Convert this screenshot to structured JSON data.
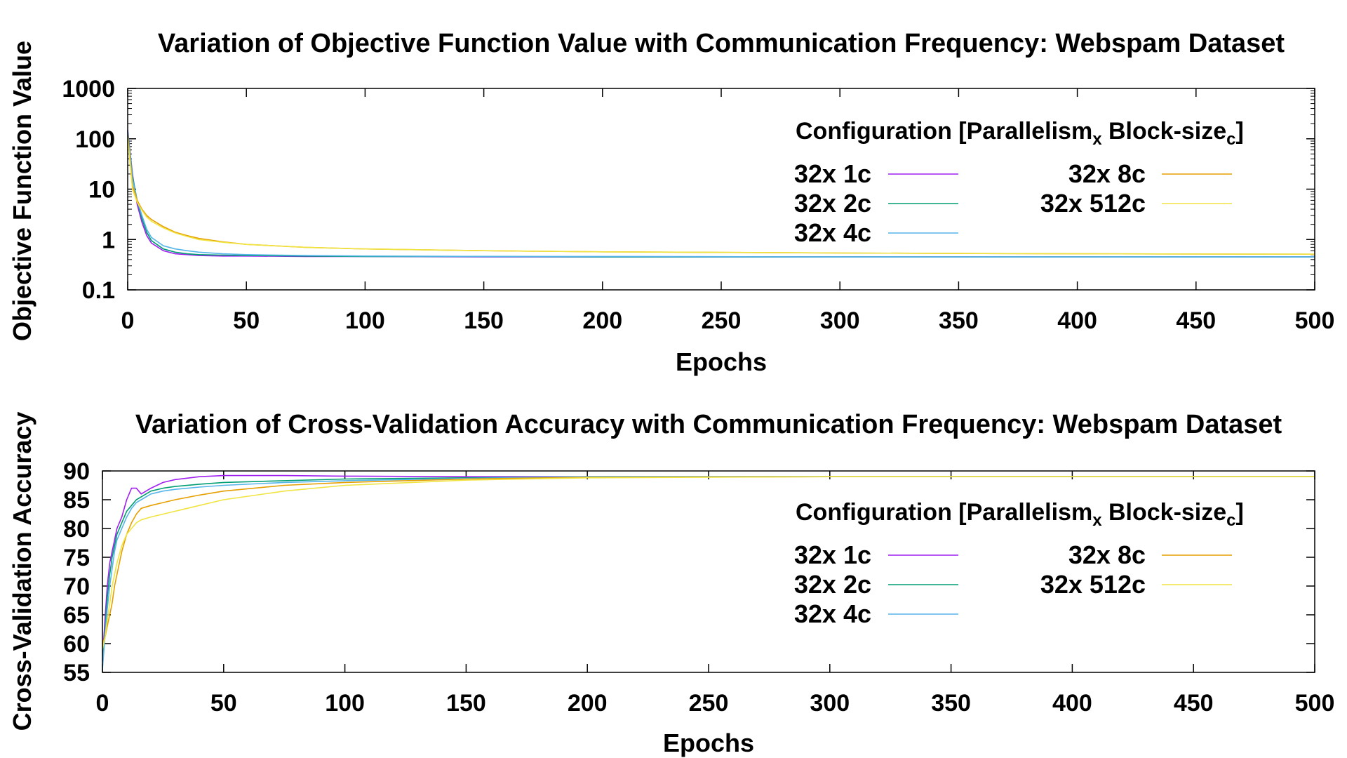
{
  "chart_data": [
    {
      "type": "line",
      "title": "Variation of Objective Function Value with Communication Frequency: Webspam Dataset",
      "xlabel": "Epochs",
      "ylabel": "Objective Function Value",
      "xlim": [
        0,
        500
      ],
      "ylim": [
        0.1,
        1000
      ],
      "yscale": "log",
      "x_ticks": [
        0,
        50,
        100,
        150,
        200,
        250,
        300,
        350,
        400,
        450,
        500
      ],
      "y_ticks": [
        0.1,
        1,
        10,
        100,
        1000
      ],
      "y_tick_labels": [
        "0.1",
        "1",
        "10",
        "100",
        "1000"
      ],
      "grid": false,
      "legend_position": "top-right",
      "legend_title": {
        "prefix": "Configuration [Parallelism",
        "sub1": "x",
        "middle": " Block-size",
        "sub2": "c",
        "suffix": "]"
      },
      "series": [
        {
          "name": "32x 1c",
          "color": "#a020f0",
          "x": [
            0,
            2,
            4,
            6,
            8,
            10,
            15,
            20,
            25,
            30,
            40,
            50,
            75,
            100,
            150,
            200,
            300,
            400,
            500
          ],
          "values": [
            150,
            20,
            5,
            2.2,
            1.2,
            0.85,
            0.6,
            0.52,
            0.5,
            0.48,
            0.47,
            0.47,
            0.46,
            0.46,
            0.45,
            0.45,
            0.45,
            0.45,
            0.45
          ]
        },
        {
          "name": "32x 2c",
          "color": "#009e73",
          "x": [
            0,
            2,
            4,
            6,
            8,
            10,
            15,
            20,
            25,
            30,
            40,
            50,
            75,
            100,
            150,
            200,
            300,
            400,
            500
          ],
          "values": [
            140,
            18,
            6,
            2.6,
            1.4,
            0.95,
            0.65,
            0.56,
            0.52,
            0.5,
            0.49,
            0.48,
            0.47,
            0.46,
            0.46,
            0.45,
            0.45,
            0.45,
            0.45
          ]
        },
        {
          "name": "32x 4c",
          "color": "#56b4e9",
          "x": [
            0,
            2,
            4,
            6,
            8,
            10,
            15,
            20,
            25,
            30,
            40,
            50,
            75,
            100,
            150,
            200,
            300,
            400,
            500
          ],
          "values": [
            130,
            16,
            6,
            3,
            1.6,
            1.1,
            0.75,
            0.65,
            0.6,
            0.56,
            0.52,
            0.5,
            0.48,
            0.47,
            0.46,
            0.46,
            0.45,
            0.45,
            0.45
          ]
        },
        {
          "name": "32x 8c",
          "color": "#e69f00",
          "x": [
            0,
            2,
            4,
            6,
            8,
            10,
            15,
            20,
            25,
            30,
            40,
            50,
            75,
            100,
            150,
            200,
            300,
            400,
            500
          ],
          "values": [
            120,
            12,
            6,
            4,
            3,
            2.5,
            1.8,
            1.4,
            1.2,
            1.05,
            0.9,
            0.8,
            0.7,
            0.65,
            0.6,
            0.57,
            0.54,
            0.52,
            0.51
          ]
        },
        {
          "name": "32x 512c",
          "color": "#f0e442",
          "x": [
            0,
            2,
            4,
            6,
            8,
            10,
            15,
            20,
            25,
            30,
            40,
            50,
            75,
            100,
            150,
            200,
            300,
            400,
            500
          ],
          "values": [
            110,
            10,
            5.5,
            3.8,
            2.8,
            2.3,
            1.7,
            1.35,
            1.15,
            1.0,
            0.88,
            0.8,
            0.7,
            0.65,
            0.6,
            0.57,
            0.54,
            0.52,
            0.51
          ]
        }
      ]
    },
    {
      "type": "line",
      "title": "Variation of Cross-Validation Accuracy with Communication Frequency: Webspam Dataset",
      "xlabel": "Epochs",
      "ylabel": "Cross-Validation Accuracy",
      "xlim": [
        0,
        500
      ],
      "ylim": [
        55,
        90
      ],
      "x_ticks": [
        0,
        50,
        100,
        150,
        200,
        250,
        300,
        350,
        400,
        450,
        500
      ],
      "y_ticks": [
        55,
        60,
        65,
        70,
        75,
        80,
        85,
        90
      ],
      "grid": false,
      "legend_position": "right",
      "legend_title": {
        "prefix": "Configuration [Parallelism",
        "sub1": "x",
        "middle": " Block-size",
        "sub2": "c",
        "suffix": "]"
      },
      "series": [
        {
          "name": "32x 1c",
          "color": "#a020f0",
          "x": [
            0,
            1,
            2,
            3,
            4,
            5,
            6,
            8,
            10,
            12,
            14,
            16,
            20,
            25,
            30,
            40,
            50,
            75,
            100,
            150,
            200,
            300,
            400,
            500
          ],
          "values": [
            57,
            64,
            70,
            74,
            76,
            78,
            80,
            82,
            85,
            87,
            87,
            86,
            87,
            88,
            88.5,
            89,
            89.2,
            89.2,
            89.1,
            89,
            89,
            89,
            89,
            89
          ]
        },
        {
          "name": "32x 2c",
          "color": "#009e73",
          "x": [
            0,
            1,
            2,
            3,
            4,
            5,
            6,
            8,
            10,
            12,
            14,
            16,
            20,
            25,
            30,
            40,
            50,
            75,
            100,
            150,
            200,
            300,
            400,
            500
          ],
          "values": [
            56,
            62,
            68,
            72,
            75,
            77,
            79,
            81,
            83,
            84,
            85,
            85.5,
            86.5,
            87,
            87.3,
            87.7,
            88,
            88.3,
            88.6,
            88.8,
            89,
            89,
            89,
            89
          ]
        },
        {
          "name": "32x 4c",
          "color": "#56b4e9",
          "x": [
            0,
            1,
            2,
            3,
            4,
            5,
            6,
            8,
            10,
            12,
            14,
            16,
            20,
            25,
            30,
            40,
            50,
            75,
            100,
            150,
            200,
            300,
            400,
            500
          ],
          "values": [
            55.5,
            61,
            66,
            70,
            73,
            76,
            78,
            80,
            82,
            83.5,
            84.5,
            85,
            86,
            86.5,
            86.8,
            87.2,
            87.5,
            88,
            88.3,
            88.7,
            89,
            89,
            89,
            89
          ]
        },
        {
          "name": "32x 8c",
          "color": "#e69f00",
          "x": [
            0,
            1,
            2,
            3,
            4,
            5,
            6,
            8,
            10,
            12,
            14,
            16,
            20,
            25,
            30,
            40,
            50,
            75,
            100,
            150,
            200,
            300,
            400,
            500
          ],
          "values": [
            60,
            61,
            63,
            65,
            67,
            70,
            72,
            76,
            79,
            81,
            82.5,
            83.5,
            84,
            84.5,
            85,
            85.8,
            86.5,
            87.5,
            88,
            88.6,
            88.9,
            89,
            89,
            89
          ]
        },
        {
          "name": "32x 512c",
          "color": "#f0e442",
          "x": [
            0,
            1,
            2,
            3,
            4,
            5,
            6,
            8,
            10,
            12,
            14,
            16,
            20,
            25,
            30,
            40,
            50,
            75,
            100,
            150,
            200,
            300,
            400,
            500
          ],
          "values": [
            59,
            61,
            64,
            67,
            70,
            72,
            74,
            77,
            79,
            80,
            81,
            81.5,
            82,
            82.5,
            83,
            84,
            85,
            86.5,
            87.5,
            88.4,
            88.8,
            89,
            89,
            89
          ]
        }
      ]
    }
  ]
}
